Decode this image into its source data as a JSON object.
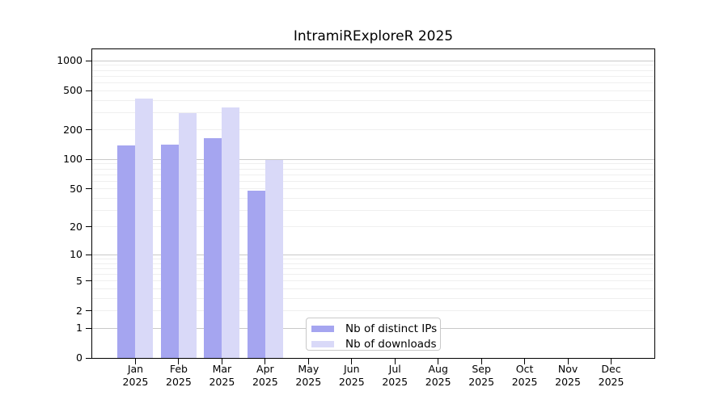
{
  "page": {
    "background": "#ffffff"
  },
  "chart_data": {
    "type": "bar",
    "title": "IntramiRExploreR 2025",
    "categories": [
      "Jan 2025",
      "Feb 2025",
      "Mar 2025",
      "Apr 2025",
      "May 2025",
      "Jun 2025",
      "Jul 2025",
      "Aug 2025",
      "Sep 2025",
      "Oct 2025",
      "Nov 2025",
      "Dec 2025"
    ],
    "series": [
      {
        "name": "Nb of distinct IPs",
        "color": "#a5a5f0",
        "values": [
          140,
          143,
          166,
          48,
          null,
          null,
          null,
          null,
          null,
          null,
          null,
          null
        ]
      },
      {
        "name": "Nb of downloads",
        "color": "#d9d9f8",
        "values": [
          417,
          296,
          338,
          98,
          null,
          null,
          null,
          null,
          null,
          null,
          null,
          null
        ]
      }
    ],
    "xlabel": "",
    "ylabel": "",
    "yscale": "log1p",
    "ylim": [
      0,
      1309
    ],
    "yticks": [
      0,
      1,
      2,
      5,
      10,
      20,
      50,
      100,
      200,
      500,
      1000
    ],
    "grid": "horizontal",
    "gridline_major_color": "#c9c9c9",
    "gridline_minor_color": "#efefef",
    "legend_position": "inside-bottom-center",
    "frame_color": "#000000"
  }
}
